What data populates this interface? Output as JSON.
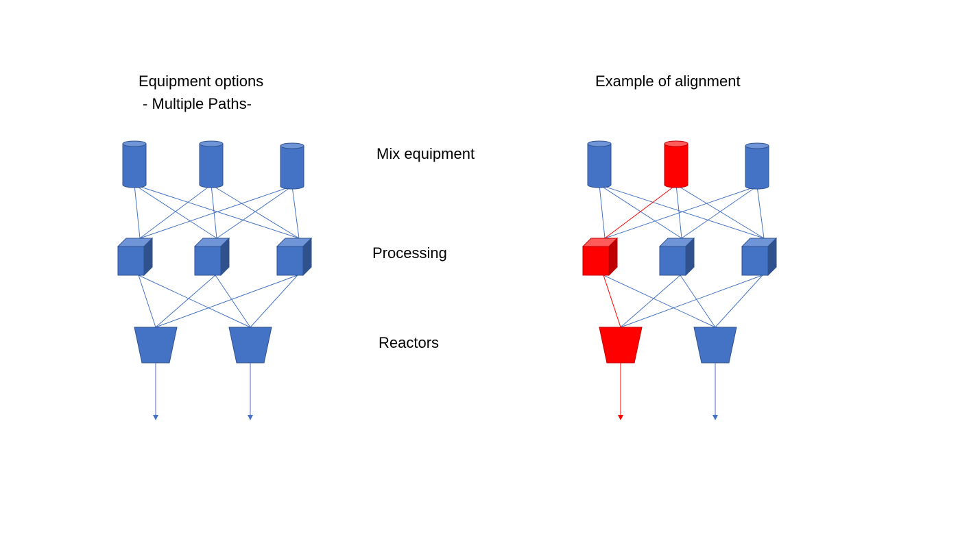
{
  "left": {
    "title": "Equipment options",
    "subtitle": "- Multiple Paths-"
  },
  "right": {
    "title": "Example of alignment"
  },
  "stages": {
    "mix": "Mix equipment",
    "processing": "Processing",
    "reactors": "Reactors"
  },
  "colors": {
    "blue_fill": "#4472C4",
    "blue_top": "#6F95D8",
    "blue_side": "#2F528F",
    "blue_line": "#4472C4",
    "red_fill": "#FF0000",
    "red_top": "#FF5B5B",
    "red_side": "#C00000",
    "red_line": "#FF0000"
  },
  "highlighted_path": {
    "mix": 2,
    "processing": 1,
    "reactor": 1
  }
}
